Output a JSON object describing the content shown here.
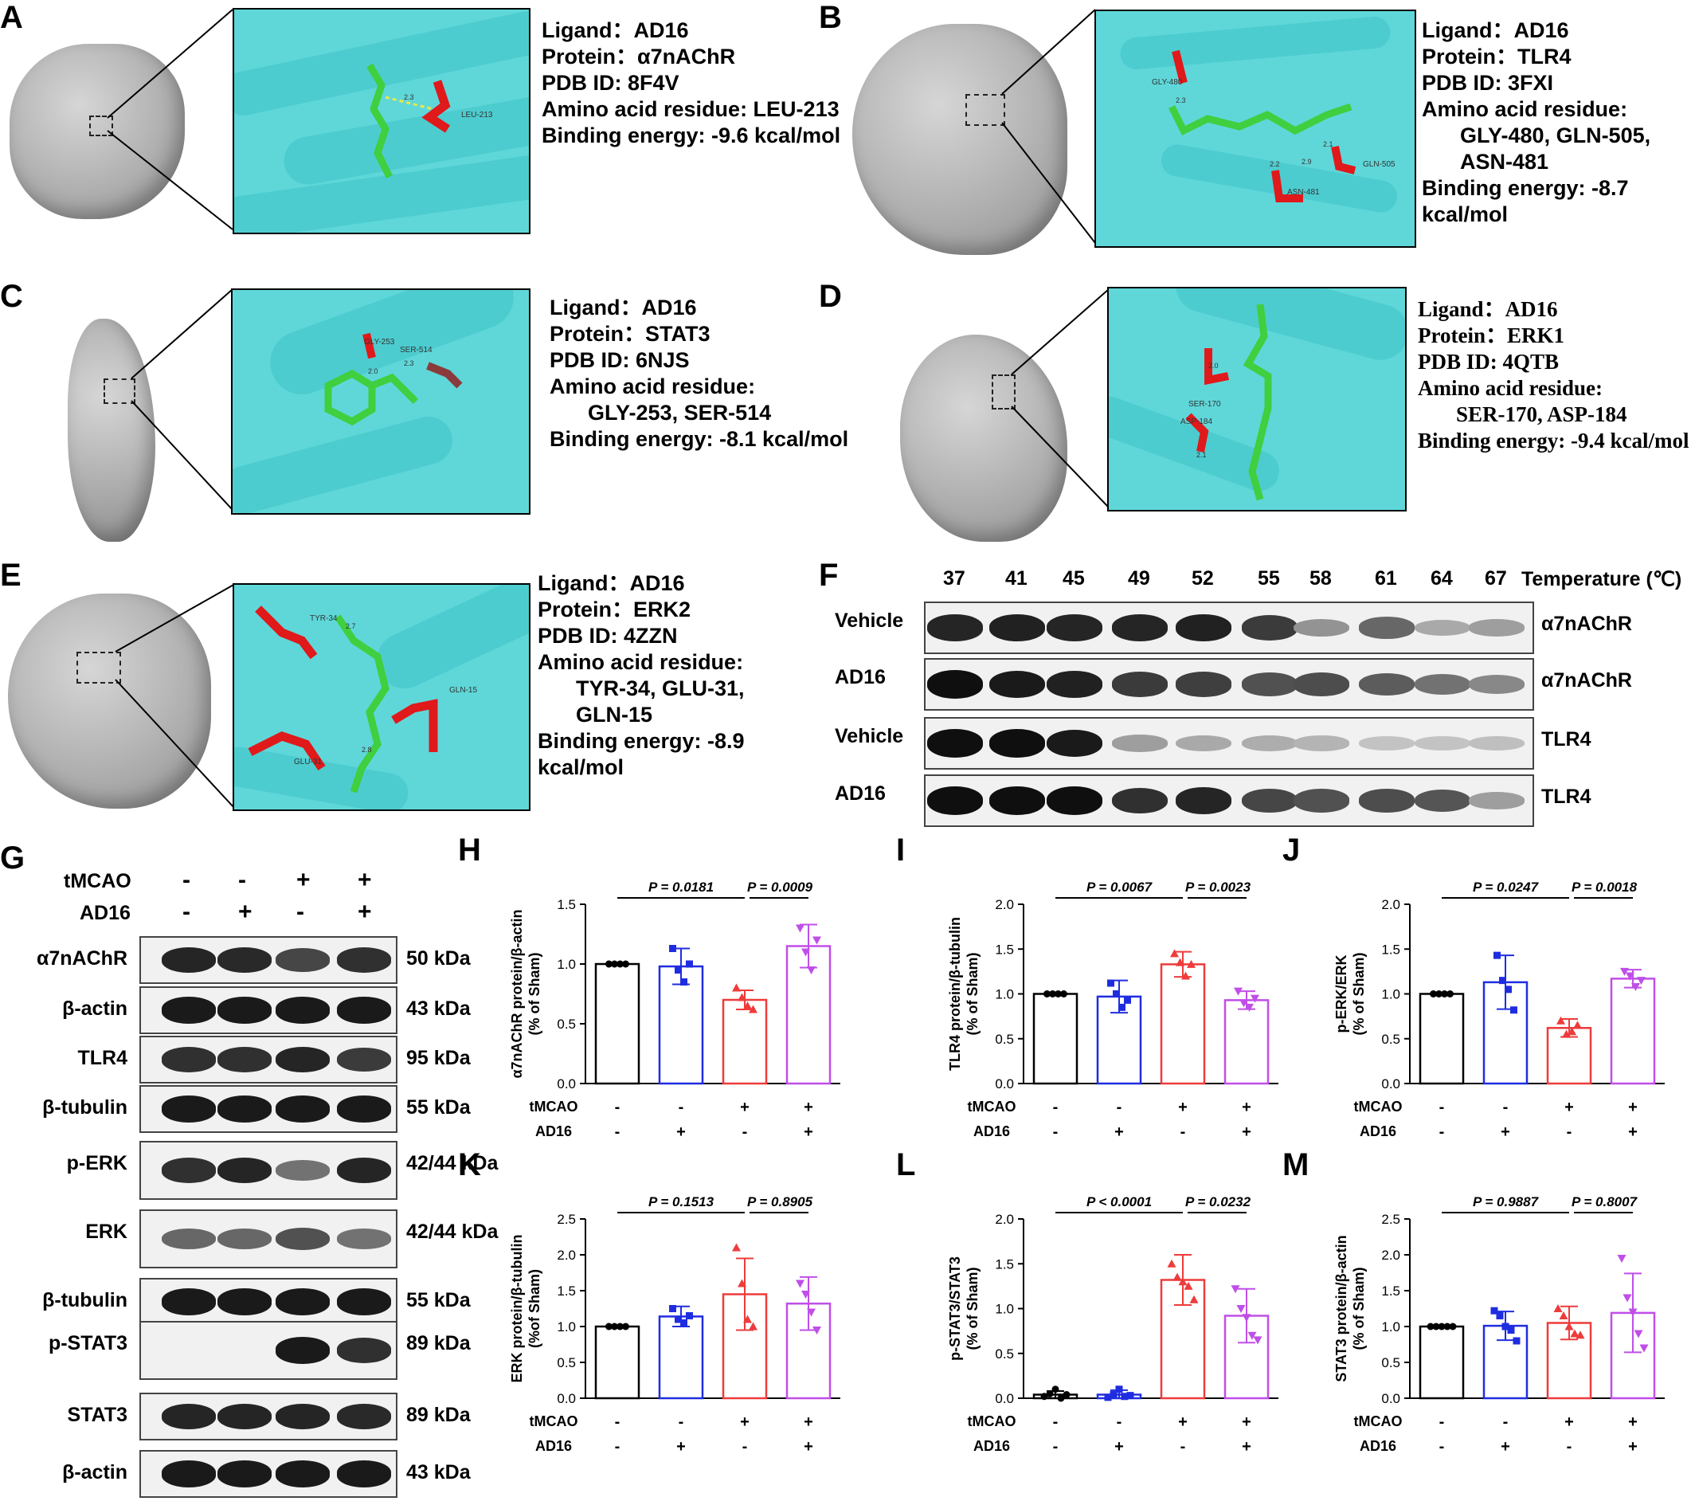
{
  "panels": {
    "A": {
      "letter": "A",
      "lines": [
        "Ligand：AD16",
        "Protein：α7nAChR",
        "PDB ID: 8F4V",
        "Amino acid residue: LEU-213",
        "Binding energy: -9.6 kcal/mol"
      ],
      "residues": [
        "LEU-213"
      ],
      "distances": [
        "2.3"
      ]
    },
    "B": {
      "letter": "B",
      "lines": [
        "Ligand：AD16",
        "Protein：TLR4",
        "PDB ID: 3FXI",
        "Amino acid residue:",
        "GLY-480, GLN-505,",
        "ASN-481",
        "Binding energy: -8.7",
        "kcal/mol"
      ],
      "residues": [
        "GLY-480",
        "GLN-505",
        "ASN-481"
      ],
      "distances": [
        "2.3",
        "2.1",
        "2.2",
        "2.9"
      ]
    },
    "C": {
      "letter": "C",
      "lines": [
        "Ligand：AD16",
        "Protein：STAT3",
        "PDB ID: 6NJS",
        "Amino acid residue:",
        "GLY-253, SER-514",
        "Binding energy: -8.1 kcal/mol"
      ],
      "residues": [
        "GLY-253",
        "SER-514"
      ],
      "distances": [
        "2.0",
        "2.3"
      ]
    },
    "D": {
      "letter": "D",
      "lines": [
        "Ligand：AD16",
        "Protein：ERK1",
        "PDB ID: 4QTB",
        "Amino acid residue:",
        "SER-170, ASP-184",
        "Binding energy: -9.4 kcal/mol"
      ],
      "residues": [
        "SER-170",
        "ASP-184"
      ],
      "distances": [
        "2.0",
        "2.1"
      ]
    },
    "E": {
      "letter": "E",
      "lines": [
        "Ligand：AD16",
        "Protein：ERK2",
        "PDB ID: 4ZZN",
        "Amino acid residue:",
        "TYR-34, GLU-31,",
        "GLN-15",
        "Binding energy: -8.9",
        "kcal/mol"
      ],
      "residues": [
        "TYR-34",
        "GLU-31",
        "GLN-15"
      ],
      "distances": [
        "2.7",
        "2.8"
      ]
    },
    "F": {
      "letter": "F",
      "temperatures": [
        "37",
        "41",
        "45",
        "49",
        "52",
        "55",
        "58",
        "61",
        "64",
        "67"
      ],
      "temp_label": "Temperature (℃)",
      "rows": [
        {
          "left": "Vehicle",
          "right": "α7nAChR",
          "intensity": [
            0.9,
            0.92,
            0.9,
            0.9,
            0.92,
            0.8,
            0.4,
            0.6,
            0.3,
            0.35
          ]
        },
        {
          "left": "AD16",
          "right": "α7nAChR",
          "intensity": [
            1.0,
            0.95,
            0.92,
            0.8,
            0.78,
            0.7,
            0.72,
            0.65,
            0.55,
            0.45
          ]
        },
        {
          "left": "Vehicle",
          "right": "TLR4",
          "intensity": [
            1.0,
            1.0,
            0.95,
            0.35,
            0.3,
            0.28,
            0.25,
            0.18,
            0.18,
            0.2
          ]
        },
        {
          "left": "AD16",
          "right": "TLR4",
          "intensity": [
            1.0,
            1.0,
            1.0,
            0.85,
            0.9,
            0.75,
            0.7,
            0.72,
            0.68,
            0.35
          ]
        }
      ]
    },
    "G": {
      "letter": "G",
      "tmcao_label": "tMCAO",
      "ad16_label": "AD16",
      "tmcao_signs": [
        "-",
        "-",
        "+",
        "+"
      ],
      "ad16_signs": [
        "-",
        "+",
        "-",
        "+"
      ],
      "rows": [
        {
          "name": "α7nAChR",
          "kda": "50 kDa",
          "intensity": [
            0.9,
            0.88,
            0.75,
            0.85
          ]
        },
        {
          "name": "β-actin",
          "kda": "43 kDa",
          "intensity": [
            0.95,
            0.95,
            0.95,
            0.95
          ]
        },
        {
          "name": "TLR4",
          "kda": "95 kDa",
          "intensity": [
            0.85,
            0.85,
            0.9,
            0.8
          ]
        },
        {
          "name": "β-tubulin",
          "kda": "55 kDa",
          "intensity": [
            0.95,
            0.95,
            0.95,
            0.95
          ]
        },
        {
          "name": "p-ERK",
          "kda": "42/44 kDa",
          "intensity": [
            0.85,
            0.9,
            0.55,
            0.9
          ]
        },
        {
          "name": "ERK",
          "kda": "42/44 kDa",
          "intensity": [
            0.6,
            0.6,
            0.7,
            0.55
          ]
        },
        {
          "name": "β-tubulin",
          "kda": "55 kDa",
          "intensity": [
            0.95,
            0.95,
            0.95,
            0.95
          ]
        },
        {
          "name": "p-STAT3",
          "kda": "89 kDa",
          "intensity": [
            0.0,
            0.0,
            0.95,
            0.85
          ]
        },
        {
          "name": "STAT3",
          "kda": "89 kDa",
          "intensity": [
            0.9,
            0.9,
            0.9,
            0.88
          ]
        },
        {
          "name": "β-actin",
          "kda": "43 kDa",
          "intensity": [
            0.95,
            0.95,
            0.95,
            0.95
          ]
        }
      ]
    }
  },
  "bar_signs": {
    "tmcao_label": "tMCAO",
    "ad16_label": "AD16",
    "tmcao": [
      "-",
      "-",
      "+",
      "+"
    ],
    "ad16": [
      "-",
      "+",
      "-",
      "+"
    ]
  },
  "colors": {
    "sham": "#000000",
    "ad16": "#1f2de0",
    "tmcao": "#ee3b3b",
    "tmcao_ad16": "#c04ee8",
    "cyan": "#5fd7d9",
    "residue": "#e0191b",
    "ligand": "#3fcf3f"
  },
  "chart_data": [
    {
      "letter": "H",
      "type": "bar",
      "ylabel": "α7nAChR protein/β-actin\n(% of Sham)",
      "ylim": [
        0,
        1.5
      ],
      "yticks": [
        "0.0",
        "0.5",
        "1.0",
        "1.5"
      ],
      "values": [
        1.0,
        0.98,
        0.7,
        1.15
      ],
      "errors": [
        0.0,
        0.15,
        0.08,
        0.18
      ],
      "points": [
        [
          1,
          1,
          1,
          1
        ],
        [
          1.13,
          0.95,
          0.85,
          1.0
        ],
        [
          0.8,
          0.72,
          0.65,
          0.62
        ],
        [
          1.3,
          1.1,
          0.95,
          1.2
        ]
      ],
      "p_values": [
        "P = 0.0181",
        "P = 0.0009"
      ]
    },
    {
      "letter": "I",
      "type": "bar",
      "ylabel": "TLR4 protein/β-tubulin\n(% of Sham)",
      "ylim": [
        0,
        2.0
      ],
      "yticks": [
        "0.0",
        "0.5",
        "1.0",
        "1.5",
        "2.0"
      ],
      "values": [
        1.0,
        0.97,
        1.33,
        0.93
      ],
      "errors": [
        0.0,
        0.18,
        0.14,
        0.1
      ],
      "points": [
        [
          1,
          1,
          1,
          1
        ],
        [
          1.12,
          1.0,
          0.85,
          0.93
        ],
        [
          1.45,
          1.35,
          1.2,
          1.33
        ],
        [
          1.03,
          0.9,
          0.85,
          0.95
        ]
      ],
      "p_values": [
        "P = 0.0067",
        "P = 0.0023"
      ]
    },
    {
      "letter": "J",
      "type": "bar",
      "ylabel": "p-ERK/ERK\n(% of Sham)",
      "ylim": [
        0,
        2.0
      ],
      "yticks": [
        "0.0",
        "0.5",
        "1.0",
        "1.5",
        "2.0"
      ],
      "values": [
        1.0,
        1.13,
        0.62,
        1.17
      ],
      "errors": [
        0.0,
        0.3,
        0.1,
        0.1
      ],
      "points": [
        [
          1,
          1,
          1,
          1
        ],
        [
          1.43,
          1.15,
          1.05,
          0.82
        ],
        [
          0.7,
          0.55,
          0.58,
          0.65
        ],
        [
          1.25,
          1.2,
          1.08,
          1.15
        ]
      ],
      "p_values": [
        "P = 0.0247",
        "P = 0.0018"
      ]
    },
    {
      "letter": "K",
      "type": "bar",
      "ylabel": "ERK protein/β-tubulin\n(%of Sham)",
      "ylim": [
        0,
        2.5
      ],
      "yticks": [
        "0.0",
        "0.5",
        "1.0",
        "1.5",
        "2.0",
        "2.5"
      ],
      "values": [
        1.0,
        1.14,
        1.45,
        1.32
      ],
      "errors": [
        0.0,
        0.14,
        0.5,
        0.37
      ],
      "points": [
        [
          1,
          1,
          1,
          1
        ],
        [
          1.25,
          1.1,
          1.05,
          1.15
        ],
        [
          2.1,
          1.6,
          1.1,
          1.0
        ],
        [
          1.6,
          1.45,
          1.2,
          0.95
        ]
      ],
      "p_values": [
        "P = 0.1513",
        "P = 0.8905"
      ]
    },
    {
      "letter": "L",
      "type": "bar",
      "ylabel": "p-STAT3/STAT3\n(% of Sham)",
      "ylim": [
        0,
        2.0
      ],
      "yticks": [
        "0.0",
        "0.5",
        "1.0",
        "1.5",
        "2.0"
      ],
      "values": [
        0.04,
        0.04,
        1.32,
        0.92
      ],
      "errors": [
        0.04,
        0.05,
        0.28,
        0.3
      ],
      "points": [
        [
          0.02,
          0.05,
          0.1,
          0.0,
          0.04
        ],
        [
          0.01,
          0.04,
          0.1,
          0.02,
          0.03
        ],
        [
          1.5,
          1.35,
          1.3,
          1.25,
          1.1
        ],
        [
          1.22,
          1.0,
          0.9,
          0.7,
          0.65
        ]
      ],
      "p_values": [
        "P < 0.0001",
        "P = 0.0232"
      ]
    },
    {
      "letter": "M",
      "type": "bar",
      "ylabel": "STAT3 protein/β-actin\n(% of Sham)",
      "ylim": [
        0,
        2.5
      ],
      "yticks": [
        "0.0",
        "0.5",
        "1.0",
        "1.5",
        "2.0",
        "2.5"
      ],
      "values": [
        1.0,
        1.01,
        1.05,
        1.19
      ],
      "errors": [
        0.0,
        0.2,
        0.23,
        0.55
      ],
      "points": [
        [
          1,
          1,
          1,
          1,
          1
        ],
        [
          1.22,
          1.15,
          1.0,
          0.95,
          0.8
        ],
        [
          1.25,
          1.15,
          1.0,
          0.9,
          0.88
        ],
        [
          1.95,
          1.4,
          1.2,
          0.9,
          0.7
        ]
      ],
      "p_values": [
        "P = 0.9887",
        "P = 0.8007"
      ]
    }
  ]
}
